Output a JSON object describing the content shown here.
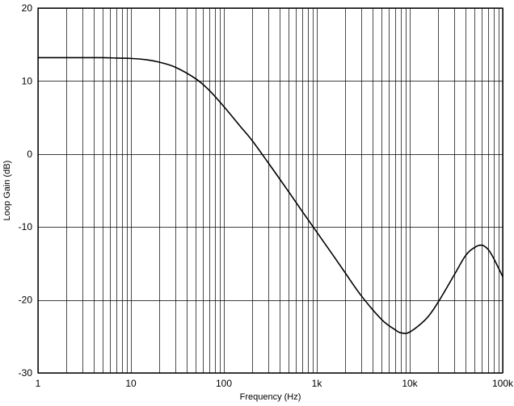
{
  "chart_data": {
    "type": "line",
    "title": "",
    "xlabel": "Frequency (Hz)",
    "ylabel": "Loop Gain (dB)",
    "x_scale": "log",
    "xlim": [
      1,
      100000
    ],
    "ylim": [
      -30,
      20
    ],
    "grid": "solid black; log minor vertical lines each decade, horizontal lines every 10 dB",
    "legend": "none",
    "x_ticks": [
      {
        "value": 1,
        "label": "1"
      },
      {
        "value": 10,
        "label": "10"
      },
      {
        "value": 100,
        "label": "100"
      },
      {
        "value": 1000,
        "label": "1k"
      },
      {
        "value": 10000,
        "label": "10k"
      },
      {
        "value": 100000,
        "label": "100k"
      }
    ],
    "y_ticks": [
      {
        "value": 20,
        "label": "20"
      },
      {
        "value": 10,
        "label": "10"
      },
      {
        "value": 0,
        "label": "0"
      },
      {
        "value": -10,
        "label": "-10"
      },
      {
        "value": -20,
        "label": "-20"
      },
      {
        "value": -30,
        "label": "-30"
      }
    ],
    "series": [
      {
        "name": "Loop Gain",
        "color": "#000000",
        "x": [
          1,
          2,
          3,
          5,
          7,
          10,
          15,
          20,
          30,
          50,
          70,
          100,
          150,
          200,
          300,
          500,
          700,
          1000,
          1500,
          2000,
          3000,
          5000,
          7000,
          8000,
          10000,
          15000,
          20000,
          30000,
          40000,
          50000,
          60000,
          70000,
          80000,
          100000
        ],
        "y": [
          13.2,
          13.2,
          13.2,
          13.2,
          13.15,
          13.1,
          12.9,
          12.6,
          11.9,
          10.3,
          8.7,
          6.5,
          3.8,
          1.9,
          -1.2,
          -5.2,
          -7.9,
          -10.7,
          -13.9,
          -16.2,
          -19.4,
          -22.7,
          -24.1,
          -24.5,
          -24.4,
          -22.6,
          -20.4,
          -16.6,
          -13.9,
          -12.8,
          -12.5,
          -13.1,
          -14.3,
          -16.8
        ]
      }
    ]
  }
}
